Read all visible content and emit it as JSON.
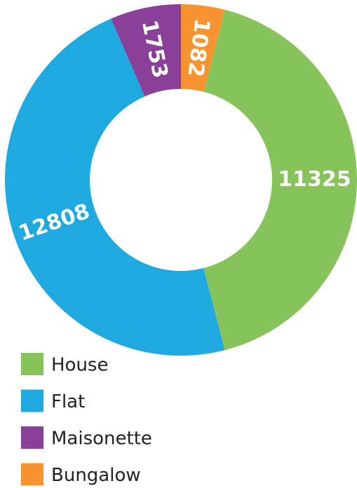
{
  "chart_data": {
    "type": "donut",
    "categories": [
      "House",
      "Flat",
      "Maisonette",
      "Bungalow"
    ],
    "values": [
      11325,
      12808,
      1753,
      1082
    ],
    "colors": [
      "#86c35a",
      "#1ea9e1",
      "#8a3f99",
      "#f7942f"
    ]
  }
}
